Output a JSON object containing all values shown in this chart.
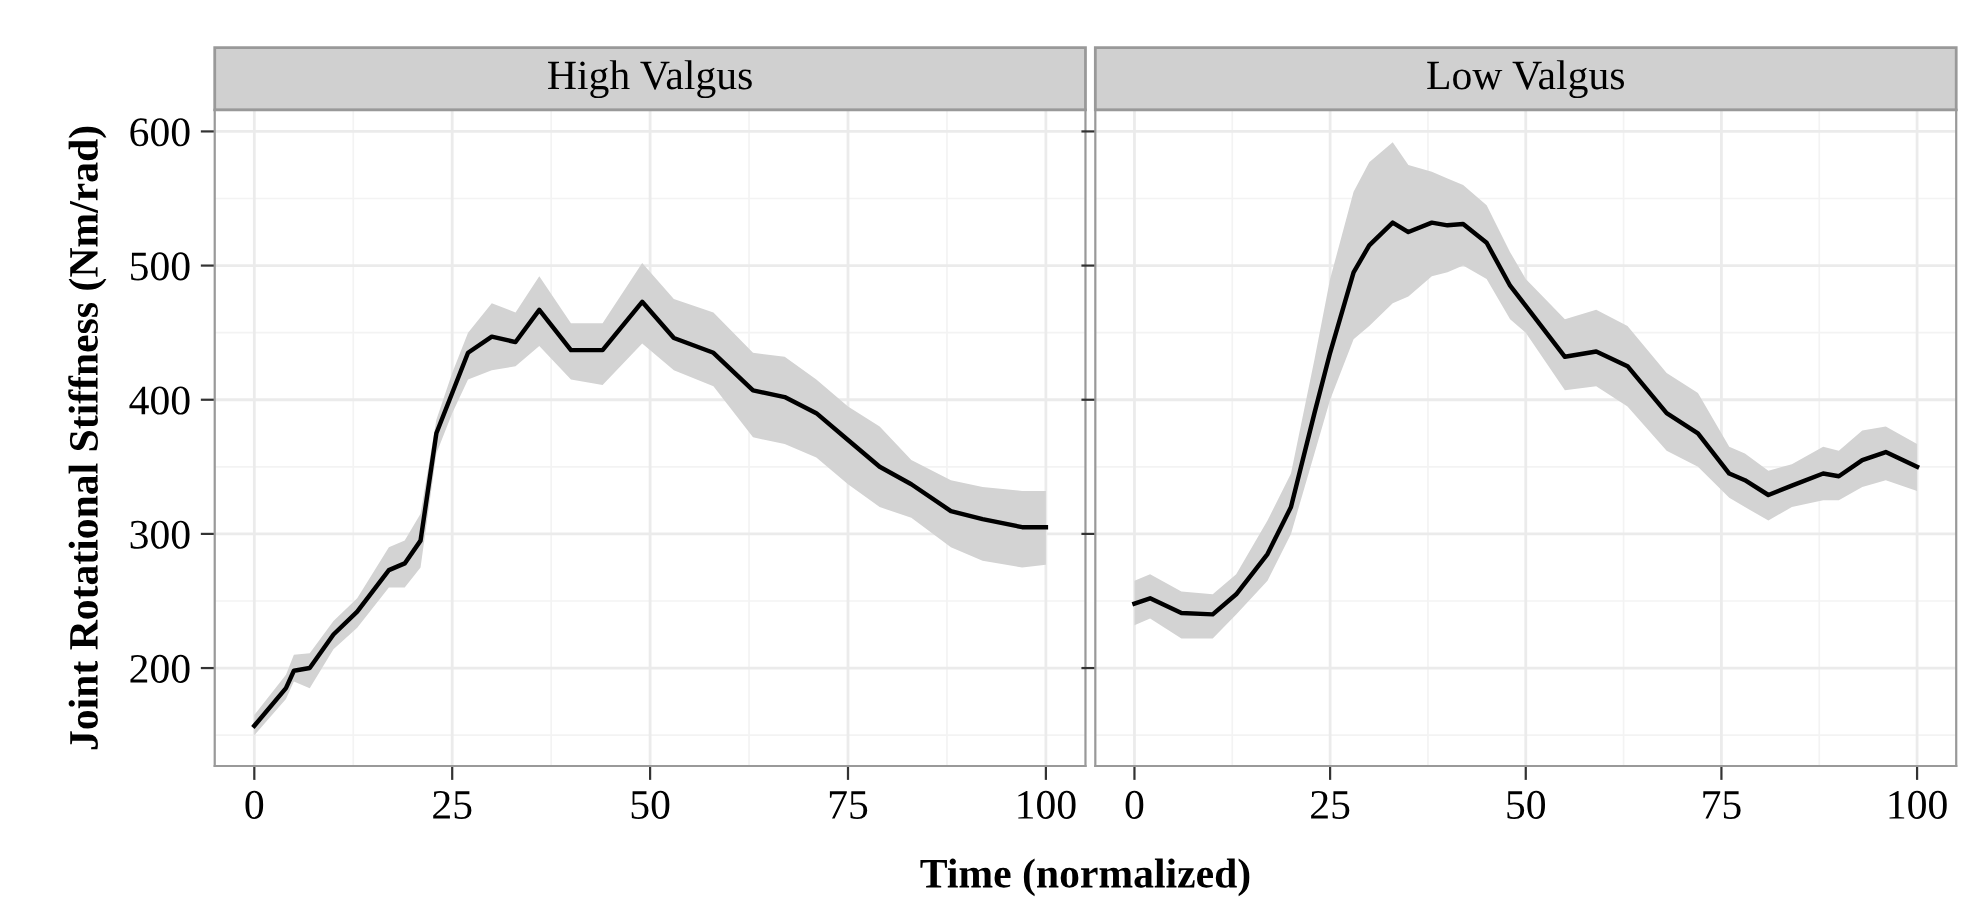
{
  "chart_data": [
    {
      "type": "line",
      "title": "High Valgus",
      "ylabel": "Joint Rotational Stiffness (Nm/rad)",
      "xlabel": "Time (normalized)",
      "xlim": [
        -5,
        105
      ],
      "xticks": [
        0,
        25,
        50,
        75,
        100
      ],
      "ylim": [
        127,
        616
      ],
      "yticks": [
        200,
        300,
        400,
        500,
        600
      ],
      "grid": true,
      "legend": false,
      "marker": "none",
      "line_style": "solid",
      "series": [
        {
          "color": "#000000",
          "x": [
            0,
            4,
            5,
            7,
            10,
            13,
            17,
            19,
            21,
            23,
            25,
            27,
            30,
            33,
            36,
            40,
            44,
            49,
            53,
            58,
            63,
            67,
            71,
            75,
            79,
            83,
            88,
            92,
            97,
            100
          ],
          "values": [
            157,
            185,
            198,
            200,
            225,
            242,
            273,
            278,
            295,
            375,
            405,
            435,
            447,
            443,
            467,
            437,
            437,
            473,
            446,
            435,
            407,
            402,
            390,
            370,
            350,
            337,
            317,
            311,
            305,
            305
          ],
          "lower": [
            150,
            177,
            190,
            185,
            214,
            230,
            260,
            260,
            275,
            360,
            390,
            415,
            422,
            425,
            440,
            415,
            411,
            442,
            422,
            410,
            372,
            367,
            357,
            337,
            320,
            312,
            290,
            280,
            275,
            277
          ],
          "upper": [
            165,
            195,
            210,
            211,
            235,
            252,
            290,
            295,
            315,
            385,
            420,
            450,
            472,
            465,
            492,
            457,
            457,
            502,
            475,
            465,
            435,
            432,
            415,
            395,
            380,
            355,
            340,
            335,
            332,
            332
          ]
        }
      ]
    },
    {
      "type": "line",
      "title": "Low Valgus",
      "xlim": [
        -5,
        105
      ],
      "xticks": [
        0,
        25,
        50,
        75,
        100
      ],
      "ylim": [
        127,
        616
      ],
      "yticks": [
        200,
        300,
        400,
        500,
        600
      ],
      "grid": true,
      "legend": false,
      "marker": "none",
      "line_style": "solid",
      "tick_labels": "x",
      "series": [
        {
          "color": "#000000",
          "x": [
            0,
            2,
            6,
            10,
            13,
            17,
            20,
            23,
            25,
            28,
            30,
            33,
            35,
            38,
            40,
            42,
            45,
            48,
            50,
            55,
            59,
            63,
            68,
            72,
            76,
            78,
            81,
            84,
            88,
            90,
            93,
            96,
            100
          ],
          "values": [
            248,
            252,
            241,
            240,
            255,
            285,
            320,
            390,
            435,
            495,
            515,
            532,
            525,
            532,
            530,
            531,
            517,
            485,
            470,
            432,
            436,
            425,
            390,
            375,
            345,
            340,
            329,
            336,
            345,
            343,
            355,
            361,
            350
          ],
          "lower": [
            232,
            237,
            222,
            222,
            240,
            265,
            300,
            360,
            400,
            445,
            455,
            472,
            477,
            492,
            495,
            500,
            490,
            460,
            450,
            407,
            410,
            395,
            362,
            350,
            327,
            320,
            310,
            320,
            325,
            325,
            335,
            340,
            332
          ],
          "upper": [
            265,
            270,
            257,
            255,
            270,
            310,
            345,
            430,
            490,
            555,
            577,
            592,
            575,
            570,
            565,
            560,
            545,
            510,
            490,
            460,
            467,
            455,
            420,
            405,
            365,
            360,
            347,
            352,
            365,
            362,
            377,
            380,
            367
          ]
        }
      ]
    }
  ]
}
